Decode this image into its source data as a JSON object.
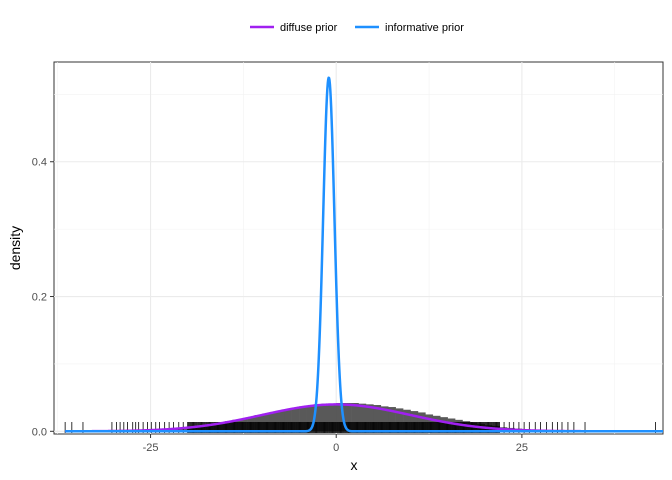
{
  "chart_data": {
    "type": "area",
    "title": "",
    "xlabel": "x",
    "ylabel": "density",
    "xlim": [
      -38,
      44
    ],
    "ylim": [
      -0.004,
      0.548
    ],
    "x_ticks": [
      -25,
      0,
      25
    ],
    "x_tick_labels": [
      "-25",
      "0",
      "25"
    ],
    "y_ticks": [
      0.0,
      0.2,
      0.4
    ],
    "y_tick_labels": [
      "0.0",
      "0.2",
      "0.4"
    ],
    "grid": true,
    "legend_position": "top",
    "histogram": {
      "bin_width": 1,
      "x_start": -28,
      "densities": [
        0.001,
        0.001,
        0.002,
        0.002,
        0.003,
        0.004,
        0.005,
        0.006,
        0.007,
        0.008,
        0.01,
        0.012,
        0.013,
        0.015,
        0.017,
        0.019,
        0.021,
        0.024,
        0.026,
        0.028,
        0.03,
        0.033,
        0.035,
        0.037,
        0.038,
        0.04,
        0.041,
        0.041,
        0.042,
        0.042,
        0.042,
        0.041,
        0.04,
        0.039,
        0.037,
        0.036,
        0.034,
        0.032,
        0.03,
        0.028,
        0.025,
        0.023,
        0.021,
        0.019,
        0.017,
        0.015,
        0.013,
        0.011,
        0.009,
        0.008,
        0.006,
        0.005,
        0.004,
        0.003,
        0.002,
        0.002,
        0.001,
        0.001
      ],
      "color": "#595959"
    },
    "series": [
      {
        "name": "diffuse prior",
        "color": "#a020f0",
        "mean": 0,
        "sd": 10,
        "x_range": [
          -36.5,
          44
        ]
      },
      {
        "name": "informative prior",
        "color": "#1e90ff",
        "mean": -1,
        "sd": 0.76,
        "x_range": [
          -36.5,
          44
        ]
      }
    ],
    "rug": {
      "x_min": -36.5,
      "x_max": 43,
      "dense_min": -20,
      "dense_max": 22
    }
  }
}
